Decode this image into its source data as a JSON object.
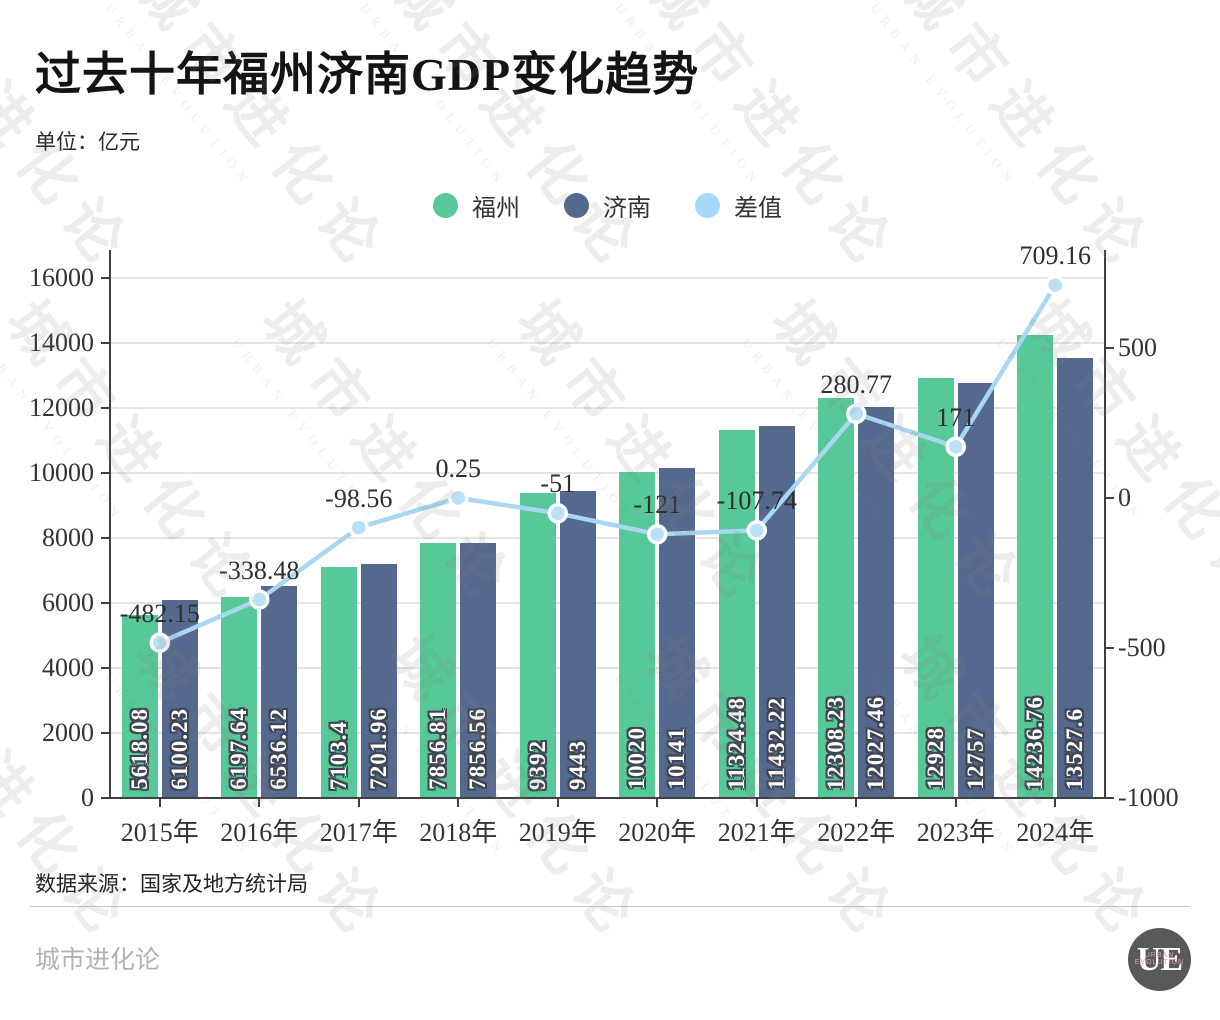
{
  "title": "过去十年福州济南GDP变化趋势",
  "unit_label": "单位：亿元",
  "source": "数据来源：国家及地方统计局",
  "footer_brand": "城市进化论",
  "logo": {
    "text": "UE",
    "subtext": "URBAN\nEVOLUTION"
  },
  "watermark": {
    "cn": "城市进化论",
    "en": "URBAN EVOLUTION"
  },
  "colors": {
    "fuzhou": "#57c897",
    "jinan": "#55698f",
    "diff_line": "#a9d6f1",
    "diff_marker": "#b9e0f7"
  },
  "chart_data": {
    "type": "bar+line combo",
    "categories": [
      "2015年",
      "2016年",
      "2017年",
      "2018年",
      "2019年",
      "2020年",
      "2021年",
      "2022年",
      "2023年",
      "2024年"
    ],
    "series": [
      {
        "name": "福州",
        "type": "bar",
        "color": "#57c897",
        "axis": "left",
        "values": [
          5618.08,
          6197.64,
          7103.4,
          7856.81,
          9392,
          10020,
          11324.48,
          12308.23,
          12928,
          14236.76
        ],
        "labels": [
          "5618.08",
          "6197.64",
          "7103.4",
          "7856.81",
          "9392",
          "10020",
          "11324.48",
          "12308.23",
          "12928",
          "14236.76"
        ]
      },
      {
        "name": "济南",
        "type": "bar",
        "color": "#55698f",
        "axis": "left",
        "values": [
          6100.23,
          6536.12,
          7201.96,
          7856.56,
          9443,
          10141,
          11432.22,
          12027.46,
          12757,
          13527.6
        ],
        "labels": [
          "6100.23",
          "6536.12",
          "7201.96",
          "7856.56",
          "9443",
          "10141",
          "11432.22",
          "12027.46",
          "12757",
          "13527.6"
        ]
      },
      {
        "name": "差值",
        "type": "line",
        "color": "#a9d6f1",
        "axis": "right",
        "values": [
          -482.15,
          -338.48,
          -98.56,
          0.25,
          -51,
          -121,
          -107.74,
          280.77,
          171,
          709.16
        ],
        "labels": [
          "-482.15",
          "-338.48",
          "-98.56",
          "0.25",
          "-51",
          "-121",
          "-107.74",
          "280.77",
          "171",
          "709.16"
        ]
      }
    ],
    "legend": [
      {
        "label": "福州",
        "color": "#57c897"
      },
      {
        "label": "济南",
        "color": "#55698f"
      },
      {
        "label": "差值",
        "color": "#a6d9f7"
      }
    ],
    "left_axis": {
      "min": 0,
      "max": 16000,
      "ticks": [
        0,
        2000,
        4000,
        6000,
        8000,
        10000,
        12000,
        14000,
        16000
      ]
    },
    "right_axis": {
      "ticks": [
        500,
        0,
        -500,
        -1000
      ]
    },
    "grid": true,
    "legend_position": "top-center"
  }
}
